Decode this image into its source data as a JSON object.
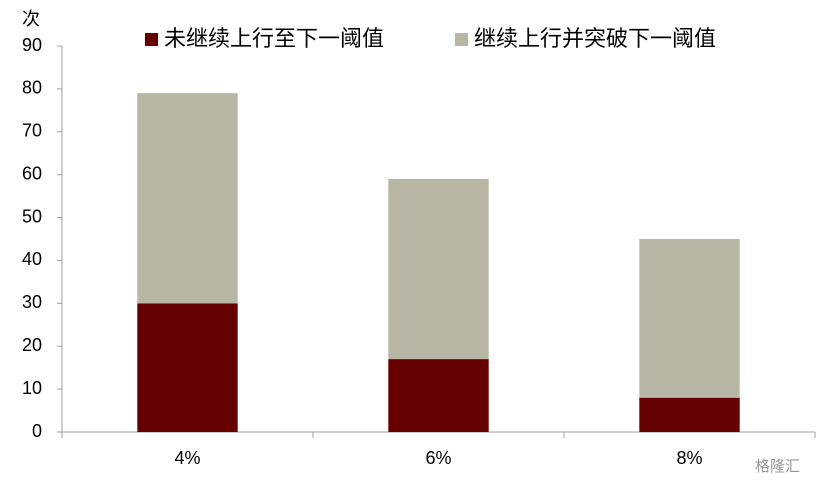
{
  "chart_data": {
    "type": "stacked-bar",
    "y_label": "次",
    "categories": [
      "4%",
      "6%",
      "8%"
    ],
    "series": [
      {
        "name": "未继续上行至下一阈值",
        "color": "#660000",
        "values": [
          30,
          17,
          8
        ]
      },
      {
        "name": "继续上行并突破下一阈值",
        "color": "#b8b7a5",
        "values": [
          49,
          42,
          37
        ]
      }
    ],
    "ylim": [
      0,
      90
    ],
    "yticks": [
      0,
      10,
      20,
      30,
      40,
      50,
      60,
      70,
      80,
      90
    ],
    "grid": false,
    "legend": "top",
    "watermark": "格隆汇"
  }
}
